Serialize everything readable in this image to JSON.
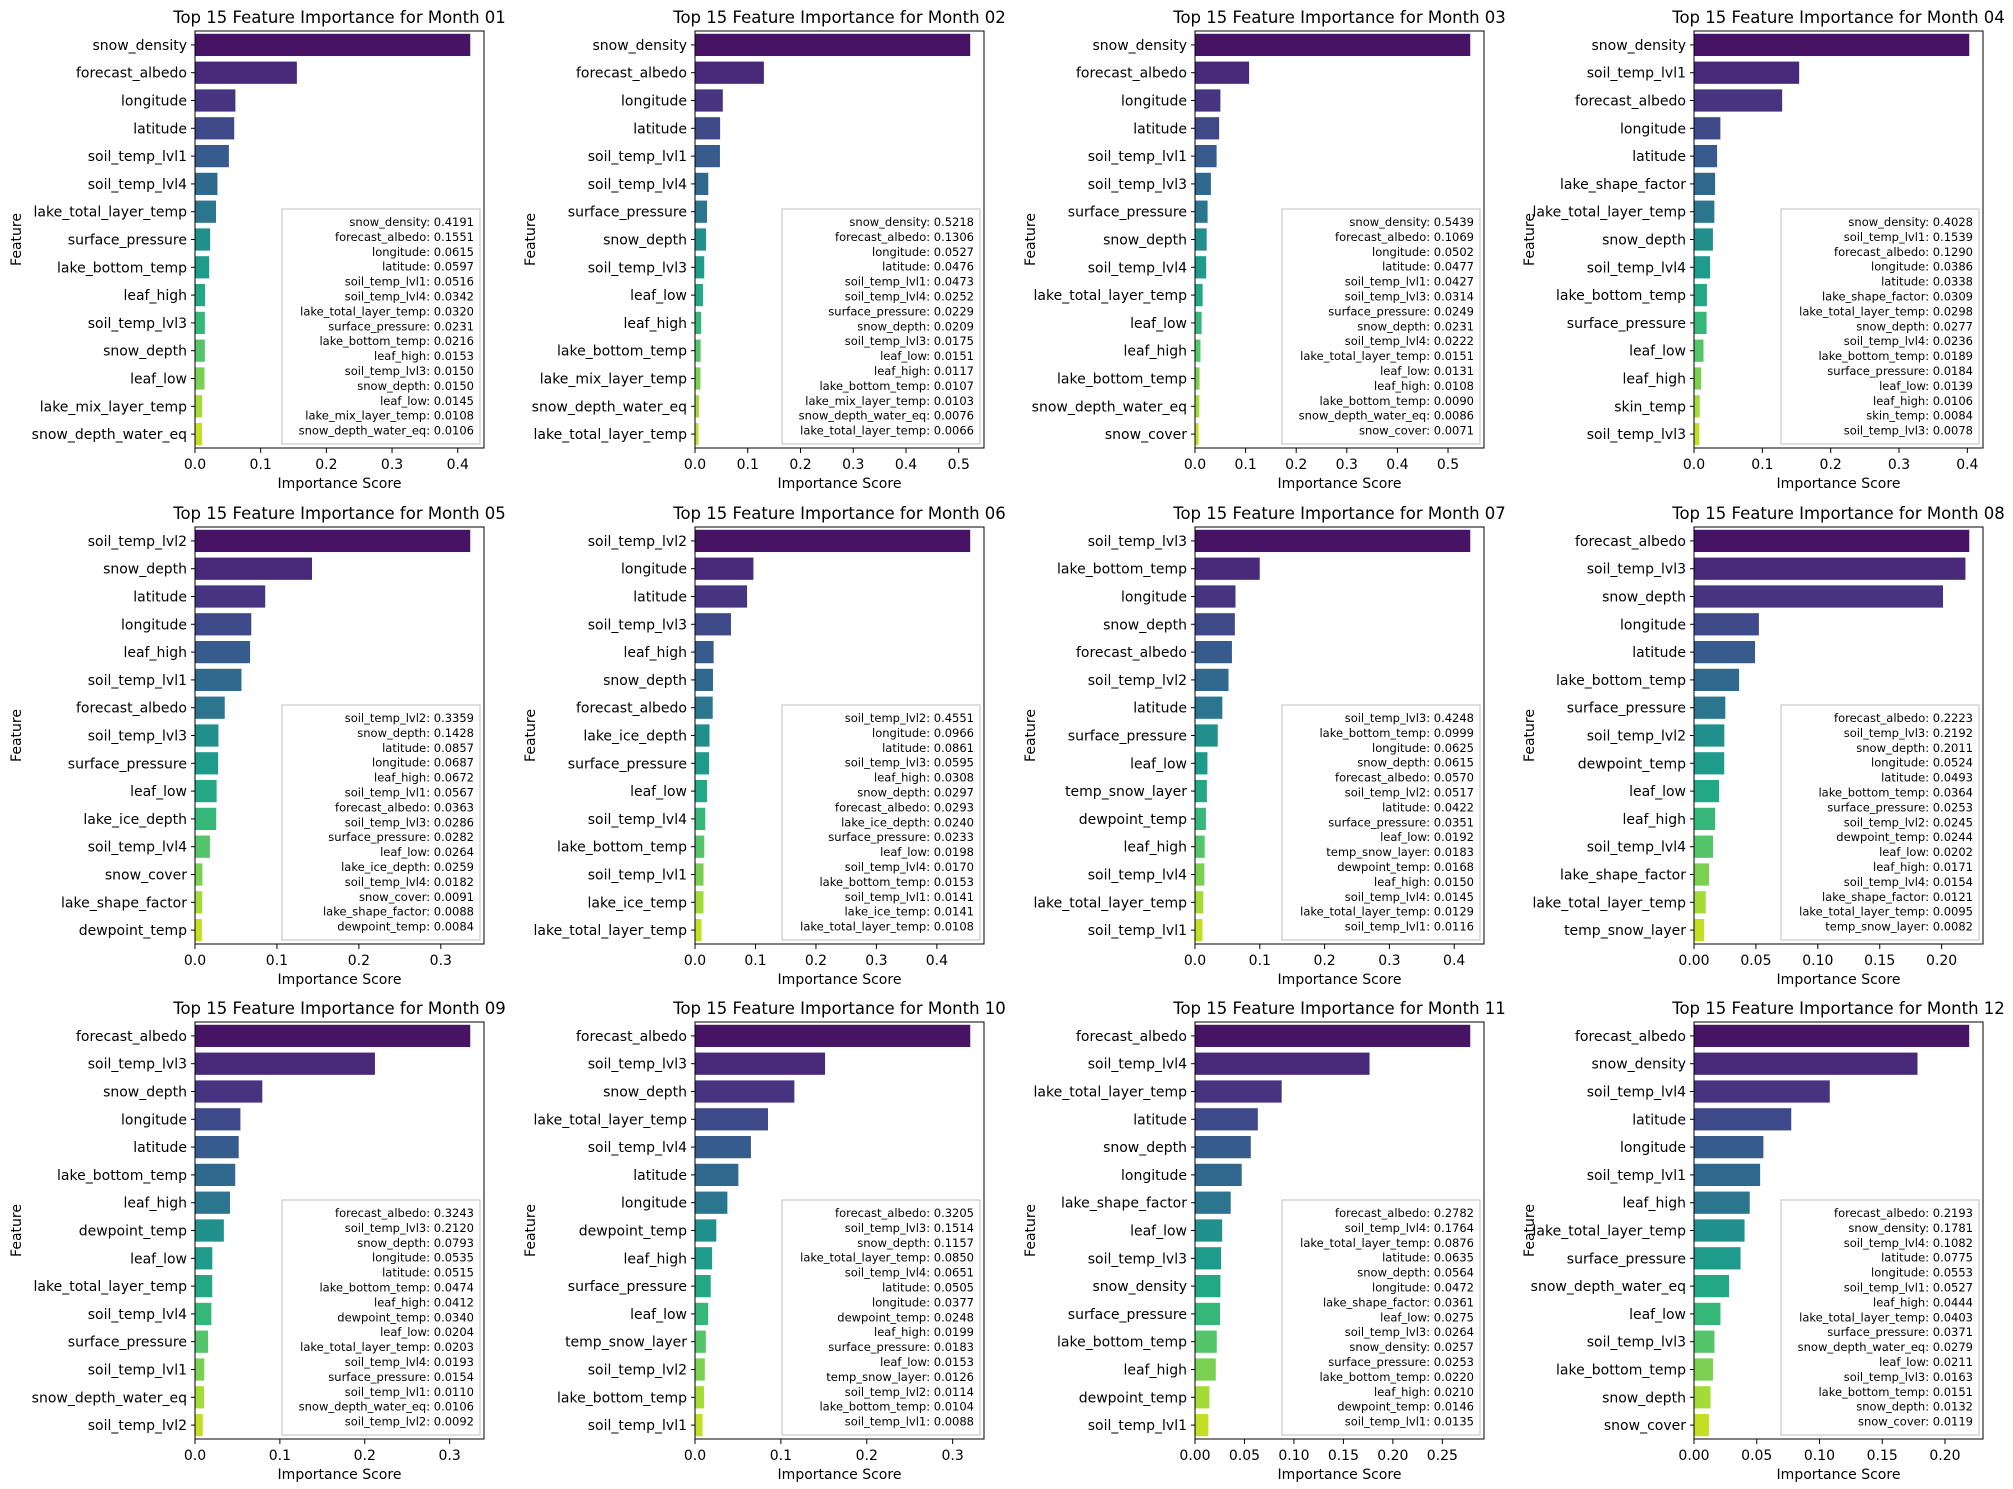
{
  "chart_data": [
    {
      "type": "bar",
      "orientation": "horizontal",
      "title": "Top 15 Feature Importance for Month 01",
      "xlabel": "Importance Score",
      "ylabel": "Feature",
      "xlim": [
        0,
        0.44
      ],
      "xticks": [
        "0.0",
        "0.1",
        "0.2",
        "0.3",
        "0.4"
      ],
      "categories": [
        "snow_density",
        "forecast_albedo",
        "longitude",
        "latitude",
        "soil_temp_lvl1",
        "soil_temp_lvl4",
        "lake_total_layer_temp",
        "surface_pressure",
        "lake_bottom_temp",
        "leaf_high",
        "soil_temp_lvl3",
        "snow_depth",
        "leaf_low",
        "lake_mix_layer_temp",
        "snow_depth_water_eq"
      ],
      "values": [
        0.4191,
        0.1551,
        0.0615,
        0.0597,
        0.0516,
        0.0342,
        0.032,
        0.0231,
        0.0216,
        0.0153,
        0.015,
        0.015,
        0.0145,
        0.0108,
        0.0106
      ],
      "legend": [
        "snow_density: 0.4191",
        "forecast_albedo: 0.1551",
        "longitude: 0.0615",
        "latitude: 0.0597",
        "soil_temp_lvl1: 0.0516",
        "soil_temp_lvl4: 0.0342",
        "lake_total_layer_temp: 0.0320",
        "surface_pressure: 0.0231",
        "lake_bottom_temp: 0.0216",
        "leaf_high: 0.0153",
        "soil_temp_lvl3: 0.0150",
        "snow_depth: 0.0150",
        "leaf_low: 0.0145",
        "lake_mix_layer_temp: 0.0108",
        "snow_depth_water_eq: 0.0106"
      ],
      "legend_position": "lower right"
    },
    {
      "type": "bar",
      "orientation": "horizontal",
      "title": "Top 15 Feature Importance for Month 02",
      "xlabel": "Importance Score",
      "ylabel": "Feature",
      "xlim": [
        0,
        0.5479
      ],
      "xticks": [
        "0.0",
        "0.1",
        "0.2",
        "0.3",
        "0.4",
        "0.5"
      ],
      "categories": [
        "snow_density",
        "forecast_albedo",
        "longitude",
        "latitude",
        "soil_temp_lvl1",
        "soil_temp_lvl4",
        "surface_pressure",
        "snow_depth",
        "soil_temp_lvl3",
        "leaf_low",
        "leaf_high",
        "lake_bottom_temp",
        "lake_mix_layer_temp",
        "snow_depth_water_eq",
        "lake_total_layer_temp"
      ],
      "values": [
        0.5218,
        0.1306,
        0.0527,
        0.0476,
        0.0473,
        0.0252,
        0.0229,
        0.0209,
        0.0175,
        0.0151,
        0.0117,
        0.0107,
        0.0103,
        0.0076,
        0.0066
      ],
      "legend": [
        "snow_density: 0.5218",
        "forecast_albedo: 0.1306",
        "longitude: 0.0527",
        "latitude: 0.0476",
        "soil_temp_lvl1: 0.0473",
        "soil_temp_lvl4: 0.0252",
        "surface_pressure: 0.0229",
        "snow_depth: 0.0209",
        "soil_temp_lvl3: 0.0175",
        "leaf_low: 0.0151",
        "leaf_high: 0.0117",
        "lake_bottom_temp: 0.0107",
        "lake_mix_layer_temp: 0.0103",
        "snow_depth_water_eq: 0.0076",
        "lake_total_layer_temp: 0.0066"
      ],
      "legend_position": "lower right"
    },
    {
      "type": "bar",
      "orientation": "horizontal",
      "title": "Top 15 Feature Importance for Month 03",
      "xlabel": "Importance Score",
      "ylabel": "Feature",
      "xlim": [
        0,
        0.5711
      ],
      "xticks": [
        "0.0",
        "0.1",
        "0.2",
        "0.3",
        "0.4",
        "0.5"
      ],
      "categories": [
        "snow_density",
        "forecast_albedo",
        "longitude",
        "latitude",
        "soil_temp_lvl1",
        "soil_temp_lvl3",
        "surface_pressure",
        "snow_depth",
        "soil_temp_lvl4",
        "lake_total_layer_temp",
        "leaf_low",
        "leaf_high",
        "lake_bottom_temp",
        "snow_depth_water_eq",
        "snow_cover"
      ],
      "values": [
        0.5439,
        0.1069,
        0.0502,
        0.0477,
        0.0427,
        0.0314,
        0.0249,
        0.0231,
        0.0222,
        0.0151,
        0.0131,
        0.0108,
        0.009,
        0.0086,
        0.0071
      ],
      "legend": [
        "snow_density: 0.5439",
        "forecast_albedo: 0.1069",
        "longitude: 0.0502",
        "latitude: 0.0477",
        "soil_temp_lvl1: 0.0427",
        "soil_temp_lvl3: 0.0314",
        "surface_pressure: 0.0249",
        "snow_depth: 0.0231",
        "soil_temp_lvl4: 0.0222",
        "lake_total_layer_temp: 0.0151",
        "leaf_low: 0.0131",
        "leaf_high: 0.0108",
        "lake_bottom_temp: 0.0090",
        "snow_depth_water_eq: 0.0086",
        "snow_cover: 0.0071"
      ],
      "legend_position": "lower right"
    },
    {
      "type": "bar",
      "orientation": "horizontal",
      "title": "Top 15 Feature Importance for Month 04",
      "xlabel": "Importance Score",
      "ylabel": "Feature",
      "xlim": [
        0,
        0.4229
      ],
      "xticks": [
        "0.0",
        "0.1",
        "0.2",
        "0.3",
        "0.4"
      ],
      "categories": [
        "snow_density",
        "soil_temp_lvl1",
        "forecast_albedo",
        "longitude",
        "latitude",
        "lake_shape_factor",
        "lake_total_layer_temp",
        "snow_depth",
        "soil_temp_lvl4",
        "lake_bottom_temp",
        "surface_pressure",
        "leaf_low",
        "leaf_high",
        "skin_temp",
        "soil_temp_lvl3"
      ],
      "values": [
        0.4028,
        0.1539,
        0.129,
        0.0386,
        0.0338,
        0.0309,
        0.0298,
        0.0277,
        0.0236,
        0.0189,
        0.0184,
        0.0139,
        0.0106,
        0.0084,
        0.0078
      ],
      "legend": [
        "snow_density: 0.4028",
        "soil_temp_lvl1: 0.1539",
        "forecast_albedo: 0.1290",
        "longitude: 0.0386",
        "latitude: 0.0338",
        "lake_shape_factor: 0.0309",
        "lake_total_layer_temp: 0.0298",
        "snow_depth: 0.0277",
        "soil_temp_lvl4: 0.0236",
        "lake_bottom_temp: 0.0189",
        "surface_pressure: 0.0184",
        "leaf_low: 0.0139",
        "leaf_high: 0.0106",
        "skin_temp: 0.0084",
        "soil_temp_lvl3: 0.0078"
      ],
      "legend_position": "lower right"
    },
    {
      "type": "bar",
      "orientation": "horizontal",
      "title": "Top 15 Feature Importance for Month 05",
      "xlabel": "Importance Score",
      "ylabel": "Feature",
      "xlim": [
        0,
        0.3527
      ],
      "xticks": [
        "0.0",
        "0.1",
        "0.2",
        "0.3"
      ],
      "categories": [
        "soil_temp_lvl2",
        "snow_depth",
        "latitude",
        "longitude",
        "leaf_high",
        "soil_temp_lvl1",
        "forecast_albedo",
        "soil_temp_lvl3",
        "surface_pressure",
        "leaf_low",
        "lake_ice_depth",
        "soil_temp_lvl4",
        "snow_cover",
        "lake_shape_factor",
        "dewpoint_temp"
      ],
      "values": [
        0.3359,
        0.1428,
        0.0857,
        0.0687,
        0.0672,
        0.0567,
        0.0363,
        0.0286,
        0.0282,
        0.0264,
        0.0259,
        0.0182,
        0.0091,
        0.0088,
        0.0084
      ],
      "legend": [
        "soil_temp_lvl2: 0.3359",
        "snow_depth: 0.1428",
        "latitude: 0.0857",
        "longitude: 0.0687",
        "leaf_high: 0.0672",
        "soil_temp_lvl1: 0.0567",
        "forecast_albedo: 0.0363",
        "soil_temp_lvl3: 0.0286",
        "surface_pressure: 0.0282",
        "leaf_low: 0.0264",
        "lake_ice_depth: 0.0259",
        "soil_temp_lvl4: 0.0182",
        "snow_cover: 0.0091",
        "lake_shape_factor: 0.0088",
        "dewpoint_temp: 0.0084"
      ],
      "legend_position": "lower right"
    },
    {
      "type": "bar",
      "orientation": "horizontal",
      "title": "Top 15 Feature Importance for Month 06",
      "xlabel": "Importance Score",
      "ylabel": "Feature",
      "xlim": [
        0,
        0.4779
      ],
      "xticks": [
        "0.0",
        "0.1",
        "0.2",
        "0.3",
        "0.4"
      ],
      "categories": [
        "soil_temp_lvl2",
        "longitude",
        "latitude",
        "soil_temp_lvl3",
        "leaf_high",
        "snow_depth",
        "forecast_albedo",
        "lake_ice_depth",
        "surface_pressure",
        "leaf_low",
        "soil_temp_lvl4",
        "lake_bottom_temp",
        "soil_temp_lvl1",
        "lake_ice_temp",
        "lake_total_layer_temp"
      ],
      "values": [
        0.4551,
        0.0966,
        0.0861,
        0.0595,
        0.0308,
        0.0297,
        0.0293,
        0.024,
        0.0233,
        0.0198,
        0.017,
        0.0153,
        0.0141,
        0.0141,
        0.0108
      ],
      "legend": [
        "soil_temp_lvl2: 0.4551",
        "longitude: 0.0966",
        "latitude: 0.0861",
        "soil_temp_lvl3: 0.0595",
        "leaf_high: 0.0308",
        "snow_depth: 0.0297",
        "forecast_albedo: 0.0293",
        "lake_ice_depth: 0.0240",
        "surface_pressure: 0.0233",
        "leaf_low: 0.0198",
        "soil_temp_lvl4: 0.0170",
        "lake_bottom_temp: 0.0153",
        "soil_temp_lvl1: 0.0141",
        "lake_ice_temp: 0.0141",
        "lake_total_layer_temp: 0.0108"
      ],
      "legend_position": "lower right"
    },
    {
      "type": "bar",
      "orientation": "horizontal",
      "title": "Top 15 Feature Importance for Month 07",
      "xlabel": "Importance Score",
      "ylabel": "Feature",
      "xlim": [
        0,
        0.446
      ],
      "xticks": [
        "0.0",
        "0.1",
        "0.2",
        "0.3",
        "0.4"
      ],
      "categories": [
        "soil_temp_lvl3",
        "lake_bottom_temp",
        "longitude",
        "snow_depth",
        "forecast_albedo",
        "soil_temp_lvl2",
        "latitude",
        "surface_pressure",
        "leaf_low",
        "temp_snow_layer",
        "dewpoint_temp",
        "leaf_high",
        "soil_temp_lvl4",
        "lake_total_layer_temp",
        "soil_temp_lvl1"
      ],
      "values": [
        0.4248,
        0.0999,
        0.0625,
        0.0615,
        0.057,
        0.0517,
        0.0422,
        0.0351,
        0.0192,
        0.0183,
        0.0168,
        0.015,
        0.0145,
        0.0129,
        0.0116
      ],
      "legend": [
        "soil_temp_lvl3: 0.4248",
        "lake_bottom_temp: 0.0999",
        "longitude: 0.0625",
        "snow_depth: 0.0615",
        "forecast_albedo: 0.0570",
        "soil_temp_lvl2: 0.0517",
        "latitude: 0.0422",
        "surface_pressure: 0.0351",
        "leaf_low: 0.0192",
        "temp_snow_layer: 0.0183",
        "dewpoint_temp: 0.0168",
        "leaf_high: 0.0150",
        "soil_temp_lvl4: 0.0145",
        "lake_total_layer_temp: 0.0129",
        "soil_temp_lvl1: 0.0116"
      ],
      "legend_position": "lower right"
    },
    {
      "type": "bar",
      "orientation": "horizontal",
      "title": "Top 15 Feature Importance for Month 08",
      "xlabel": "Importance Score",
      "ylabel": "Feature",
      "xlim": [
        0,
        0.2334
      ],
      "xticks": [
        "0.00",
        "0.05",
        "0.10",
        "0.15",
        "0.20"
      ],
      "categories": [
        "forecast_albedo",
        "soil_temp_lvl3",
        "snow_depth",
        "longitude",
        "latitude",
        "lake_bottom_temp",
        "surface_pressure",
        "soil_temp_lvl2",
        "dewpoint_temp",
        "leaf_low",
        "leaf_high",
        "soil_temp_lvl4",
        "lake_shape_factor",
        "lake_total_layer_temp",
        "temp_snow_layer"
      ],
      "values": [
        0.2223,
        0.2192,
        0.2011,
        0.0524,
        0.0493,
        0.0364,
        0.0253,
        0.0245,
        0.0244,
        0.0202,
        0.0171,
        0.0154,
        0.0121,
        0.0095,
        0.0082
      ],
      "legend": [
        "forecast_albedo: 0.2223",
        "soil_temp_lvl3: 0.2192",
        "snow_depth: 0.2011",
        "longitude: 0.0524",
        "latitude: 0.0493",
        "lake_bottom_temp: 0.0364",
        "surface_pressure: 0.0253",
        "soil_temp_lvl2: 0.0245",
        "dewpoint_temp: 0.0244",
        "leaf_low: 0.0202",
        "leaf_high: 0.0171",
        "soil_temp_lvl4: 0.0154",
        "lake_shape_factor: 0.0121",
        "lake_total_layer_temp: 0.0095",
        "temp_snow_layer: 0.0082"
      ],
      "legend_position": "lower right"
    },
    {
      "type": "bar",
      "orientation": "horizontal",
      "title": "Top 15 Feature Importance for Month 09",
      "xlabel": "Importance Score",
      "ylabel": "Feature",
      "xlim": [
        0,
        0.3405
      ],
      "xticks": [
        "0.0",
        "0.1",
        "0.2",
        "0.3"
      ],
      "categories": [
        "forecast_albedo",
        "soil_temp_lvl3",
        "snow_depth",
        "longitude",
        "latitude",
        "lake_bottom_temp",
        "leaf_high",
        "dewpoint_temp",
        "leaf_low",
        "lake_total_layer_temp",
        "soil_temp_lvl4",
        "surface_pressure",
        "soil_temp_lvl1",
        "snow_depth_water_eq",
        "soil_temp_lvl2"
      ],
      "values": [
        0.3243,
        0.212,
        0.0793,
        0.0535,
        0.0515,
        0.0474,
        0.0412,
        0.034,
        0.0204,
        0.0203,
        0.0193,
        0.0154,
        0.011,
        0.0106,
        0.0092
      ],
      "legend": [
        "forecast_albedo: 0.3243",
        "soil_temp_lvl3: 0.2120",
        "snow_depth: 0.0793",
        "longitude: 0.0535",
        "latitude: 0.0515",
        "lake_bottom_temp: 0.0474",
        "leaf_high: 0.0412",
        "dewpoint_temp: 0.0340",
        "leaf_low: 0.0204",
        "lake_total_layer_temp: 0.0203",
        "soil_temp_lvl4: 0.0193",
        "surface_pressure: 0.0154",
        "soil_temp_lvl1: 0.0110",
        "snow_depth_water_eq: 0.0106",
        "soil_temp_lvl2: 0.0092"
      ],
      "legend_position": "lower right"
    },
    {
      "type": "bar",
      "orientation": "horizontal",
      "title": "Top 15 Feature Importance for Month 10",
      "xlabel": "Importance Score",
      "ylabel": "Feature",
      "xlim": [
        0,
        0.3365
      ],
      "xticks": [
        "0.0",
        "0.1",
        "0.2",
        "0.3"
      ],
      "categories": [
        "forecast_albedo",
        "soil_temp_lvl3",
        "snow_depth",
        "lake_total_layer_temp",
        "soil_temp_lvl4",
        "latitude",
        "longitude",
        "dewpoint_temp",
        "leaf_high",
        "surface_pressure",
        "leaf_low",
        "temp_snow_layer",
        "soil_temp_lvl2",
        "lake_bottom_temp",
        "soil_temp_lvl1"
      ],
      "values": [
        0.3205,
        0.1514,
        0.1157,
        0.085,
        0.0651,
        0.0505,
        0.0377,
        0.0248,
        0.0199,
        0.0183,
        0.0153,
        0.0126,
        0.0114,
        0.0104,
        0.0088
      ],
      "legend": [
        "forecast_albedo: 0.3205",
        "soil_temp_lvl3: 0.1514",
        "snow_depth: 0.1157",
        "lake_total_layer_temp: 0.0850",
        "soil_temp_lvl4: 0.0651",
        "latitude: 0.0505",
        "longitude: 0.0377",
        "dewpoint_temp: 0.0248",
        "leaf_high: 0.0199",
        "surface_pressure: 0.0183",
        "leaf_low: 0.0153",
        "temp_snow_layer: 0.0126",
        "soil_temp_lvl2: 0.0114",
        "lake_bottom_temp: 0.0104",
        "soil_temp_lvl1: 0.0088"
      ],
      "legend_position": "lower right"
    },
    {
      "type": "bar",
      "orientation": "horizontal",
      "title": "Top 15 Feature Importance for Month 11",
      "xlabel": "Importance Score",
      "ylabel": "Feature",
      "xlim": [
        0,
        0.2921
      ],
      "xticks": [
        "0.00",
        "0.05",
        "0.10",
        "0.15",
        "0.20",
        "0.25"
      ],
      "categories": [
        "forecast_albedo",
        "soil_temp_lvl4",
        "lake_total_layer_temp",
        "latitude",
        "snow_depth",
        "longitude",
        "lake_shape_factor",
        "leaf_low",
        "soil_temp_lvl3",
        "snow_density",
        "surface_pressure",
        "lake_bottom_temp",
        "leaf_high",
        "dewpoint_temp",
        "soil_temp_lvl1"
      ],
      "values": [
        0.2782,
        0.1764,
        0.0876,
        0.0635,
        0.0564,
        0.0472,
        0.0361,
        0.0275,
        0.0264,
        0.0257,
        0.0253,
        0.022,
        0.021,
        0.0146,
        0.0135
      ],
      "legend": [
        "forecast_albedo: 0.2782",
        "soil_temp_lvl4: 0.1764",
        "lake_total_layer_temp: 0.0876",
        "latitude: 0.0635",
        "snow_depth: 0.0564",
        "longitude: 0.0472",
        "lake_shape_factor: 0.0361",
        "leaf_low: 0.0275",
        "soil_temp_lvl3: 0.0264",
        "snow_density: 0.0257",
        "surface_pressure: 0.0253",
        "lake_bottom_temp: 0.0220",
        "leaf_high: 0.0210",
        "dewpoint_temp: 0.0146",
        "soil_temp_lvl1: 0.0135"
      ],
      "legend_position": "lower right"
    },
    {
      "type": "bar",
      "orientation": "horizontal",
      "title": "Top 15 Feature Importance for Month 12",
      "xlabel": "Importance Score",
      "ylabel": "Feature",
      "xlim": [
        0,
        0.2303
      ],
      "xticks": [
        "0.00",
        "0.05",
        "0.10",
        "0.15",
        "0.20"
      ],
      "categories": [
        "forecast_albedo",
        "snow_density",
        "soil_temp_lvl4",
        "latitude",
        "longitude",
        "soil_temp_lvl1",
        "leaf_high",
        "lake_total_layer_temp",
        "surface_pressure",
        "snow_depth_water_eq",
        "leaf_low",
        "soil_temp_lvl3",
        "lake_bottom_temp",
        "snow_depth",
        "snow_cover"
      ],
      "values": [
        0.2193,
        0.1781,
        0.1082,
        0.0775,
        0.0553,
        0.0527,
        0.0444,
        0.0403,
        0.0371,
        0.0279,
        0.0211,
        0.0163,
        0.0151,
        0.0132,
        0.0119
      ],
      "legend": [
        "forecast_albedo: 0.2193",
        "snow_density: 0.1781",
        "soil_temp_lvl4: 0.1082",
        "latitude: 0.0775",
        "longitude: 0.0553",
        "soil_temp_lvl1: 0.0527",
        "leaf_high: 0.0444",
        "lake_total_layer_temp: 0.0403",
        "surface_pressure: 0.0371",
        "snow_depth_water_eq: 0.0279",
        "leaf_low: 0.0211",
        "soil_temp_lvl3: 0.0163",
        "lake_bottom_temp: 0.0151",
        "snow_depth: 0.0132",
        "snow_cover: 0.0119"
      ],
      "legend_position": "lower right"
    }
  ],
  "colors": [
    "#471365",
    "#482878",
    "#463480",
    "#3e4989",
    "#375b8d",
    "#31688e",
    "#2b758e",
    "#21908c",
    "#1e9b8a",
    "#22a884",
    "#35b779",
    "#54c568",
    "#7ad151",
    "#a5db36",
    "#c2df23"
  ]
}
